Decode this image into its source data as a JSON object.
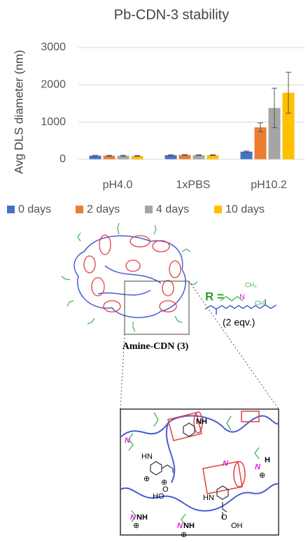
{
  "chart_data": {
    "type": "bar",
    "title": "Pb-CDN-3 stability",
    "y_label": "Avg DLS diameter (nm)",
    "categories": [
      "pH4.0",
      "1xPBS",
      "pH10.2"
    ],
    "series": [
      {
        "name": "0 days",
        "color": "#4472c4",
        "values": [
          100,
          115,
          210
        ],
        "errors": [
          10,
          10,
          15
        ]
      },
      {
        "name": "2 days",
        "color": "#ed7d31",
        "values": [
          100,
          120,
          860
        ],
        "errors": [
          10,
          10,
          120
        ]
      },
      {
        "name": "4 days",
        "color": "#a5a5a5",
        "values": [
          100,
          115,
          1380
        ],
        "errors": [
          10,
          10,
          530
        ]
      },
      {
        "name": "10 days",
        "color": "#ffc000",
        "values": [
          95,
          115,
          1790
        ],
        "errors": [
          10,
          10,
          550
        ]
      }
    ],
    "ylim": [
      0,
      3000
    ],
    "yticks": [
      0,
      1000,
      2000,
      3000
    ],
    "grid": true,
    "legend": "bottom"
  },
  "diagram": {
    "r_label": "R =",
    "equiv": "(2 eqv.)",
    "caption": "Amine-CDN (3)",
    "r_group": [
      "N",
      "CH₃",
      "CH₃"
    ],
    "labels": [
      "NH",
      "HN",
      "N",
      "HN",
      "N",
      "H",
      "N",
      "HO",
      "O",
      "O",
      "OH",
      "NH",
      "NH",
      "N",
      "N",
      "⊕",
      "⊕",
      "⊕",
      "⊕",
      "⊕"
    ]
  }
}
